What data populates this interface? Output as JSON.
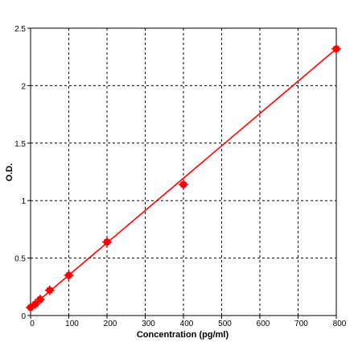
{
  "chart_data": {
    "type": "scatter",
    "title": "",
    "xlabel": "Concentration (pg/ml)",
    "ylabel": "O.D.",
    "xlim": [
      0,
      800
    ],
    "ylim": [
      0,
      2.5
    ],
    "x_ticks": [
      0,
      100,
      200,
      300,
      400,
      500,
      600,
      700,
      800
    ],
    "x_tick_labels": [
      "0",
      "100",
      "200",
      "300",
      "400",
      "500",
      "600",
      "700",
      "800"
    ],
    "y_ticks": [
      0,
      0.5,
      1,
      1.5,
      2,
      2.5
    ],
    "y_tick_labels": [
      "0",
      "0.5",
      "1",
      "1.5",
      "2",
      "2.5"
    ],
    "grid": true,
    "grid_style": "dashed",
    "legend": "none",
    "series": [
      {
        "x": [
          0,
          12.5,
          25,
          50,
          100,
          200,
          400,
          800
        ],
        "y": [
          0.07,
          0.1,
          0.14,
          0.22,
          0.35,
          0.64,
          1.14,
          2.32
        ],
        "marker": "filled-circle",
        "color": "#ff0000"
      }
    ],
    "fit_line": {
      "x": [
        0,
        800
      ],
      "y": [
        0.07,
        2.32
      ],
      "color": "#ff0000"
    }
  }
}
